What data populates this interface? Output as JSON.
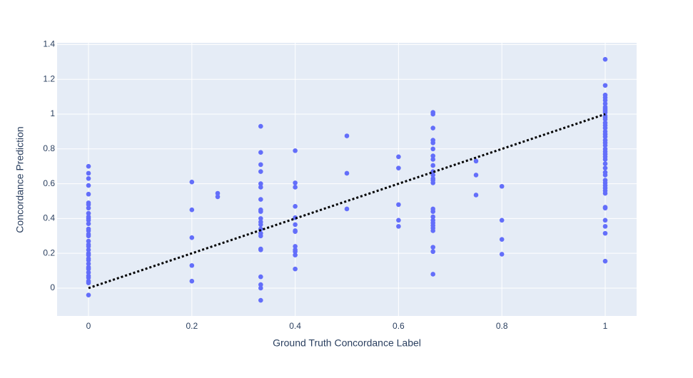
{
  "chart_data": {
    "type": "scatter",
    "x_label": "Ground Truth Concordance Label",
    "y_label": "Concordance Prediction",
    "xlim": [
      -0.0608,
      1.0608
    ],
    "ylim": [
      -0.16,
      1.41
    ],
    "xticks": [
      0,
      0.2,
      0.4,
      0.6,
      0.8,
      1
    ],
    "yticks": [
      0,
      0.2,
      0.4,
      0.6,
      0.8,
      1,
      1.2,
      1.4
    ],
    "grid": true,
    "series": [
      {
        "mode": "markers",
        "color": "#636efa",
        "x": [
          0,
          0,
          0,
          0,
          0,
          0,
          0,
          0,
          0,
          0,
          0,
          0,
          0,
          0,
          0,
          0,
          0,
          0,
          0,
          0,
          0,
          0,
          0,
          0,
          0,
          0,
          0,
          0,
          0,
          0,
          0,
          0,
          0,
          0,
          0.2,
          0.2,
          0.2,
          0.2,
          0.2,
          0.25,
          0.25,
          0.3333,
          0.3333,
          0.3333,
          0.3333,
          0.3333,
          0.3333,
          0.3333,
          0.3333,
          0.3333,
          0.3333,
          0.3333,
          0.3333,
          0.3333,
          0.3333,
          0.3333,
          0.3333,
          0.3333,
          0.3333,
          0.3333,
          0.3333,
          0.3333,
          0.4,
          0.4,
          0.4,
          0.4,
          0.4,
          0.4,
          0.4,
          0.4,
          0.4,
          0.4,
          0.4,
          0.4,
          0.4,
          0.5,
          0.5,
          0.5,
          0.6,
          0.6,
          0.6,
          0.6,
          0.6,
          0.6667,
          0.6667,
          0.6667,
          0.6667,
          0.6667,
          0.6667,
          0.6667,
          0.6667,
          0.6667,
          0.6667,
          0.6667,
          0.6667,
          0.6667,
          0.6667,
          0.6667,
          0.6667,
          0.6667,
          0.6667,
          0.6667,
          0.6667,
          0.6667,
          0.6667,
          0.6667,
          0.6667,
          0.6667,
          0.75,
          0.75,
          0.75,
          0.8,
          0.8,
          0.8,
          0.8,
          1,
          1,
          1,
          1,
          1,
          1,
          1,
          1,
          1,
          1,
          1,
          1,
          1,
          1,
          1,
          1,
          1,
          1,
          1,
          1,
          1,
          1,
          1,
          1,
          1,
          1,
          1,
          1,
          1,
          1,
          1,
          1,
          1,
          1,
          1,
          1,
          1,
          1,
          1,
          1,
          1,
          1,
          1
        ],
        "values": [
          0.7,
          0.66,
          0.63,
          0.59,
          0.54,
          0.49,
          0.48,
          0.46,
          0.43,
          0.41,
          0.4,
          0.39,
          0.37,
          0.34,
          0.33,
          0.31,
          0.3,
          0.27,
          0.25,
          0.24,
          0.22,
          0.2,
          0.19,
          0.17,
          0.16,
          0.14,
          0.12,
          0.11,
          0.09,
          0.07,
          0.06,
          0.04,
          0.03,
          -0.04,
          0.61,
          0.45,
          0.29,
          0.13,
          0.04,
          0.545,
          0.525,
          0.93,
          0.78,
          0.71,
          0.67,
          0.6,
          0.58,
          0.51,
          0.45,
          0.44,
          0.4,
          0.38,
          0.365,
          0.34,
          0.315,
          0.3,
          0.225,
          0.22,
          0.065,
          0.02,
          0.0,
          -0.07,
          0.79,
          0.605,
          0.58,
          0.47,
          0.405,
          0.365,
          0.33,
          0.325,
          0.24,
          0.22,
          0.21,
          0.19,
          0.11,
          0.875,
          0.66,
          0.455,
          0.755,
          0.69,
          0.48,
          0.39,
          0.355,
          1.01,
          1.0,
          0.92,
          0.85,
          0.835,
          0.8,
          0.76,
          0.74,
          0.705,
          0.67,
          0.65,
          0.63,
          0.62,
          0.605,
          0.455,
          0.44,
          0.41,
          0.39,
          0.375,
          0.36,
          0.345,
          0.33,
          0.235,
          0.21,
          0.08,
          0.73,
          0.65,
          0.535,
          0.585,
          0.39,
          0.28,
          0.195,
          1.315,
          1.165,
          1.11,
          1.095,
          1.08,
          1.06,
          1.04,
          1.03,
          1.02,
          1.01,
          0.99,
          0.98,
          0.97,
          0.95,
          0.935,
          0.92,
          0.9,
          0.885,
          0.87,
          0.85,
          0.835,
          0.82,
          0.8,
          0.785,
          0.77,
          0.755,
          0.74,
          0.715,
          0.69,
          0.665,
          0.65,
          0.62,
          0.605,
          0.59,
          0.575,
          0.56,
          0.545,
          0.465,
          0.46,
          0.39,
          0.355,
          0.315,
          0.155
        ]
      },
      {
        "mode": "lines",
        "color": "#000000",
        "dash": "dot",
        "x": [
          0,
          1
        ],
        "values": [
          0,
          1
        ]
      }
    ]
  }
}
